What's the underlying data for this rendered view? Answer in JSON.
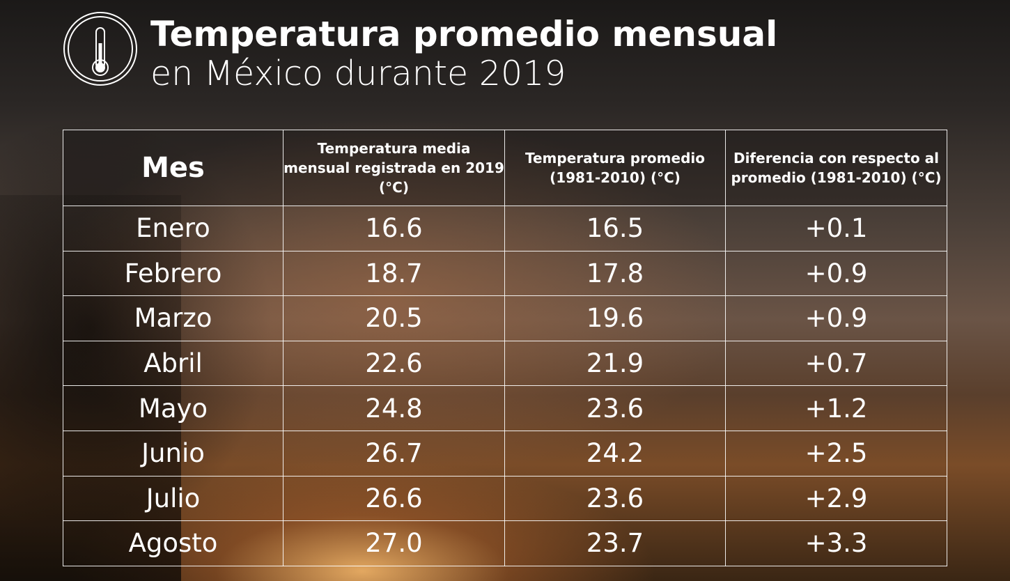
{
  "header": {
    "title": "Temperatura promedio mensual",
    "subtitle": "en México durante 2019",
    "icon": "thermometer-icon"
  },
  "chart_data": {
    "type": "table",
    "columns": [
      "Mes",
      "Temperatura media mensual registrada en 2019 (°C)",
      "Temperatura promedio (1981-2010) (°C)",
      "Diferencia con respecto al promedio (1981-2010) (°C)"
    ],
    "rows": [
      [
        "Enero",
        "16.6",
        "16.5",
        "+0.1"
      ],
      [
        "Febrero",
        "18.7",
        "17.8",
        "+0.9"
      ],
      [
        "Marzo",
        "20.5",
        "19.6",
        "+0.9"
      ],
      [
        "Abril",
        "22.6",
        "21.9",
        "+0.7"
      ],
      [
        "Mayo",
        "24.8",
        "23.6",
        "+1.2"
      ],
      [
        "Junio",
        "26.7",
        "24.2",
        "+2.5"
      ],
      [
        "Julio",
        "26.6",
        "23.6",
        "+2.9"
      ],
      [
        "Agosto",
        "27.0",
        "23.7",
        "+3.3"
      ]
    ]
  }
}
